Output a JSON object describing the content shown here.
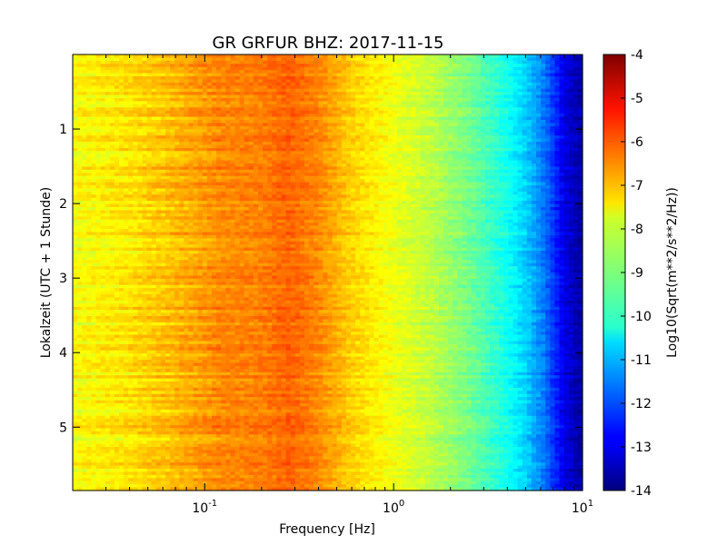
{
  "chart_data": {
    "type": "heatmap",
    "title": "GR GRFUR BHZ: 2017-11-15",
    "xlabel": "Frequency [Hz]",
    "ylabel": "Lokalzeit (UTC + 1 Stunde)",
    "x_scale": "log",
    "xlim": [
      0.02,
      10
    ],
    "ylim": [
      5.85,
      0
    ],
    "x_ticks": [
      {
        "value": 0.1,
        "base": "10",
        "exp": "-1"
      },
      {
        "value": 1,
        "base": "10",
        "exp": "0"
      },
      {
        "value": 10,
        "base": "10",
        "exp": "1"
      }
    ],
    "y_ticks": [
      {
        "value": 1,
        "label": "1"
      },
      {
        "value": 2,
        "label": "2"
      },
      {
        "value": 3,
        "label": "3"
      },
      {
        "value": 4,
        "label": "4"
      },
      {
        "value": 5,
        "label": "5"
      }
    ],
    "colorbar": {
      "label": "Log10(Sqrt(m**2/s**2/Hz))",
      "min": -14,
      "max": -4,
      "colormap": "jet",
      "ticks": [
        "-4",
        "-5",
        "-6",
        "-7",
        "-8",
        "-9",
        "-10",
        "-11",
        "-12",
        "-13",
        "-14"
      ]
    },
    "frequency_profile": [
      {
        "freq": 0.02,
        "value": -7.8
      },
      {
        "freq": 0.04,
        "value": -7.5
      },
      {
        "freq": 0.06,
        "value": -7.2
      },
      {
        "freq": 0.12,
        "value": -6.6
      },
      {
        "freq": 0.2,
        "value": -6.5
      },
      {
        "freq": 0.28,
        "value": -6.2
      },
      {
        "freq": 0.4,
        "value": -6.6
      },
      {
        "freq": 0.6,
        "value": -7.3
      },
      {
        "freq": 1,
        "value": -7.9
      },
      {
        "freq": 1.6,
        "value": -8.4
      },
      {
        "freq": 2.5,
        "value": -9.1
      },
      {
        "freq": 4,
        "value": -10.1
      },
      {
        "freq": 5,
        "value": -10.7
      },
      {
        "freq": 6.3,
        "value": -11.6
      },
      {
        "freq": 8,
        "value": -13.0
      },
      {
        "freq": 10,
        "value": -13.7
      }
    ]
  }
}
